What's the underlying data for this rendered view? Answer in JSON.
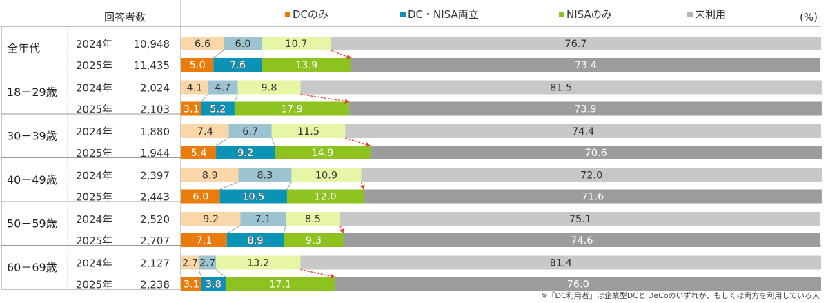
{
  "header": {
    "respondents_label": "回答者数",
    "unit": "(%)"
  },
  "colors": {
    "dc_only_light": "#FAD7A8",
    "dc_only_dark": "#E97C0A",
    "both_light": "#9BC3D0",
    "both_dark": "#0A93B4",
    "nisa_only_light": "#E6F6A6",
    "nisa_only_dark": "#8DC21F",
    "unused_light": "#C8C8C8",
    "unused_dark": "#9C9C9C",
    "arrow": "#E8402A",
    "highlight_text": "#E8402A"
  },
  "chart_data": {
    "type": "bar",
    "orientation": "horizontal",
    "stacked": true,
    "normalized_percent": true,
    "unit": "(%)",
    "legend_position": "top",
    "legend": [
      {
        "key": "dc_only",
        "label": "DCのみ",
        "color": "#E97C0A"
      },
      {
        "key": "both",
        "label": "DC・NISA両立",
        "color": "#0A93B4"
      },
      {
        "key": "nisa_only",
        "label": "NISAのみ",
        "color": "#8DC21F"
      },
      {
        "key": "unused",
        "label": "未利用",
        "color": "#B5B5B5"
      }
    ],
    "groups": [
      {
        "label": "全年代",
        "rows": [
          {
            "year": "2024年",
            "n": "10,948",
            "values": {
              "dc_only": 6.6,
              "both": 6.0,
              "nisa_only": 10.7,
              "unused": 76.7
            },
            "labels": {
              "dc_only": "6.6",
              "both": "6.0",
              "nisa_only": "10.7",
              "unused": "76.7"
            }
          },
          {
            "year": "2025年",
            "n": "11,435",
            "values": {
              "dc_only": 5.0,
              "both": 7.6,
              "nisa_only": 13.9,
              "unused": 73.4
            },
            "labels": {
              "dc_only": "5.0",
              "both": "7.6",
              "nisa_only": "13.9",
              "unused": "73.4"
            }
          }
        ]
      },
      {
        "label": "18－29歳",
        "rows": [
          {
            "year": "2024年",
            "n": "2,024",
            "values": {
              "dc_only": 4.1,
              "both": 4.7,
              "nisa_only": 9.8,
              "unused": 81.5
            },
            "labels": {
              "dc_only": "4.1",
              "both": "4.7",
              "nisa_only": "9.8",
              "unused": "81.5"
            }
          },
          {
            "year": "2025年",
            "n": "2,103",
            "values": {
              "dc_only": 3.1,
              "both": 5.2,
              "nisa_only": 17.9,
              "unused": 73.9
            },
            "labels": {
              "dc_only": "3.1",
              "both": "5.2",
              "nisa_only": "17.9",
              "unused": "73.9"
            }
          }
        ]
      },
      {
        "label": "30－39歳",
        "rows": [
          {
            "year": "2024年",
            "n": "1,880",
            "values": {
              "dc_only": 7.4,
              "both": 6.7,
              "nisa_only": 11.5,
              "unused": 74.4
            },
            "labels": {
              "dc_only": "7.4",
              "both": "6.7",
              "nisa_only": "11.5",
              "unused": "74.4"
            }
          },
          {
            "year": "2025年",
            "n": "1,944",
            "values": {
              "dc_only": 5.4,
              "both": 9.2,
              "nisa_only": 14.9,
              "unused": 70.6
            },
            "labels": {
              "dc_only": "5.4",
              "both": "9.2",
              "nisa_only": "14.9",
              "unused": "70.6"
            }
          }
        ]
      },
      {
        "label": "40－49歳",
        "rows": [
          {
            "year": "2024年",
            "n": "2,397",
            "values": {
              "dc_only": 8.9,
              "both": 8.3,
              "nisa_only": 10.9,
              "unused": 72.0
            },
            "labels": {
              "dc_only": "8.9",
              "both": "8.3",
              "nisa_only": "10.9",
              "unused": "72.0"
            }
          },
          {
            "year": "2025年",
            "n": "2,443",
            "values": {
              "dc_only": 6.0,
              "both": 10.5,
              "nisa_only": 12.0,
              "unused": 71.6
            },
            "labels": {
              "dc_only": "6.0",
              "both": "10.5",
              "nisa_only": "12.0",
              "unused": "71.6"
            }
          }
        ]
      },
      {
        "label": "50－59歳",
        "rows": [
          {
            "year": "2024年",
            "n": "2,520",
            "values": {
              "dc_only": 9.2,
              "both": 7.1,
              "nisa_only": 8.5,
              "unused": 75.1
            },
            "labels": {
              "dc_only": "9.2",
              "both": "7.1",
              "nisa_only": "8.5",
              "unused": "75.1"
            }
          },
          {
            "year": "2025年",
            "n": "2,707",
            "values": {
              "dc_only": 7.1,
              "both": 8.9,
              "nisa_only": 9.3,
              "unused": 74.6
            },
            "labels": {
              "dc_only": "7.1",
              "both": "8.9",
              "nisa_only": "9.3",
              "unused": "74.6"
            }
          }
        ]
      },
      {
        "label": "60－69歳",
        "rows": [
          {
            "year": "2024年",
            "n": "2,127",
            "values": {
              "dc_only": 2.7,
              "both": 2.7,
              "nisa_only": 13.2,
              "unused": 81.4
            },
            "labels": {
              "dc_only": "2.7",
              "both": "2.7",
              "nisa_only": "13.2",
              "unused": "81.4"
            }
          },
          {
            "year": "2025年",
            "n": "2,238",
            "values": {
              "dc_only": 3.1,
              "both": 3.8,
              "nisa_only": 17.1,
              "unused": 76.0
            },
            "labels": {
              "dc_only": "3.1",
              "both": "3.8",
              "nisa_only": "17.1",
              "unused": "76.0"
            }
          }
        ]
      }
    ]
  },
  "footnote": "※「DC利用者」は企業型DCとiDeCoのいずれか、もしくは両方を利用している人"
}
